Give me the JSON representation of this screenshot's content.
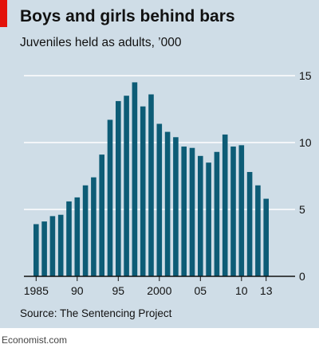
{
  "title": "Boys and girls behind bars",
  "subtitle": "Juveniles held as adults, ’000",
  "source": "Source: The Sentencing Project",
  "brand": "Economist.com",
  "colors": {
    "bar": "#0d5c76",
    "background": "#cfdde7",
    "gridline": "#ffffff",
    "accent": "#e3120b"
  },
  "chart_data": {
    "type": "bar",
    "categories": [
      1985,
      1986,
      1987,
      1988,
      1989,
      1990,
      1991,
      1992,
      1993,
      1994,
      1995,
      1996,
      1997,
      1998,
      1999,
      2000,
      2001,
      2002,
      2003,
      2004,
      2005,
      2006,
      2007,
      2008,
      2009,
      2010,
      2011,
      2012,
      2013
    ],
    "values": [
      3.9,
      4.1,
      4.5,
      4.6,
      5.6,
      5.9,
      6.8,
      7.4,
      9.1,
      11.7,
      13.1,
      13.5,
      14.5,
      12.7,
      13.6,
      11.4,
      10.8,
      10.4,
      9.7,
      9.6,
      9.0,
      8.5,
      9.3,
      10.6,
      9.7,
      9.8,
      7.8,
      6.8,
      5.8
    ],
    "x_tick_labels": [
      "1985",
      "90",
      "95",
      "2000",
      "05",
      "10",
      "13"
    ],
    "x_tick_positions": [
      1985,
      1990,
      1995,
      2000,
      2005,
      2010,
      2013
    ],
    "y_tick_labels": [
      "0",
      "5",
      "10",
      "15"
    ],
    "y_ticks": [
      0,
      5,
      10,
      15
    ],
    "ylim": [
      0,
      15
    ],
    "grid": true,
    "y_axis_side": "right"
  }
}
